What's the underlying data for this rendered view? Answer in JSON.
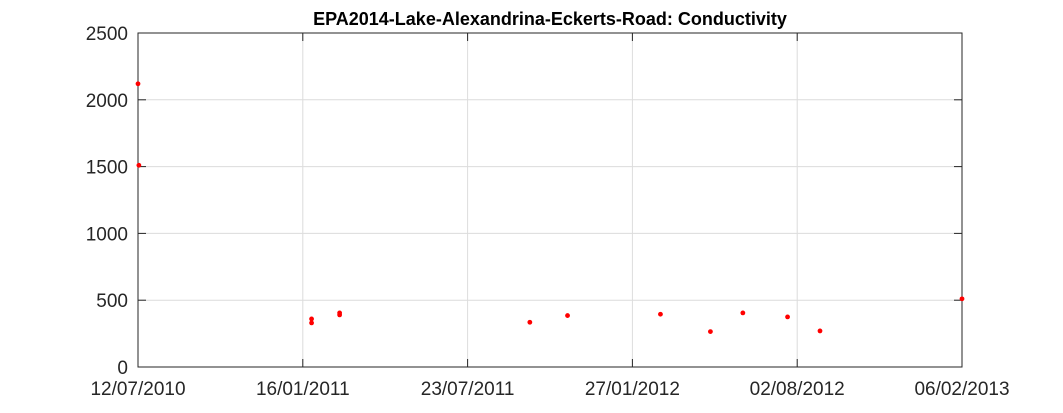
{
  "chart_data": {
    "type": "scatter",
    "title": "EPA2014-Lake-Alexandrina-Eckerts-Road: Conductivity",
    "xlabel": "",
    "ylabel": "",
    "x_axis_type": "date",
    "xlim": [
      "12/07/2010",
      "06/02/2013"
    ],
    "ylim": [
      0,
      2500
    ],
    "x_ticks": [
      "12/07/2010",
      "16/01/2011",
      "23/07/2011",
      "27/01/2012",
      "02/08/2012",
      "06/02/2013"
    ],
    "y_ticks": [
      0,
      500,
      1000,
      1500,
      2000,
      2500
    ],
    "grid": true,
    "legend": "none",
    "marker_color": "#ff0000",
    "series": [
      {
        "points": [
          {
            "x": "12/07/2010",
            "y": 2120
          },
          {
            "x": "13/07/2010",
            "y": 1510
          },
          {
            "x": "26/01/2011",
            "y": 360
          },
          {
            "x": "26/01/2011",
            "y": 330
          },
          {
            "x": "27/02/2011",
            "y": 405
          },
          {
            "x": "27/02/2011",
            "y": 390
          },
          {
            "x": "02/10/2011",
            "y": 335
          },
          {
            "x": "14/11/2011",
            "y": 385
          },
          {
            "x": "28/02/2012",
            "y": 395
          },
          {
            "x": "25/04/2012",
            "y": 265
          },
          {
            "x": "01/06/2012",
            "y": 405
          },
          {
            "x": "22/07/2012",
            "y": 375
          },
          {
            "x": "28/08/2012",
            "y": 270
          },
          {
            "x": "06/02/2013",
            "y": 510
          }
        ]
      }
    ]
  }
}
